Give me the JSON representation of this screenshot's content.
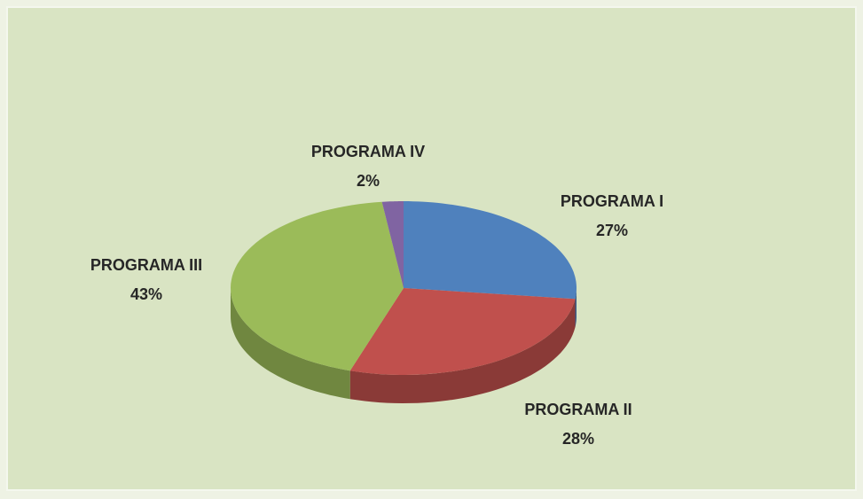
{
  "chart_data": {
    "type": "pie",
    "categories": [
      "PROGRAMA I",
      "PROGRAMA II",
      "PROGRAMA III",
      "PROGRAMA IV"
    ],
    "values": [
      27,
      28,
      43,
      2
    ],
    "value_labels": [
      "27%",
      "28%",
      "43%",
      "2%"
    ],
    "colors": [
      "#4f81bd",
      "#c0504d",
      "#9bbb59",
      "#8064a2"
    ]
  }
}
